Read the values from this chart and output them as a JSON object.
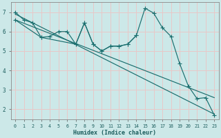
{
  "xlabel": "Humidex (Indice chaleur)",
  "bg_color": "#cce8e8",
  "grid_color": "#e8c8c8",
  "line_color": "#1a6e6e",
  "xlim": [
    -0.5,
    23.5
  ],
  "ylim": [
    1.5,
    7.5
  ],
  "xticks": [
    0,
    1,
    2,
    3,
    4,
    5,
    6,
    7,
    8,
    9,
    10,
    11,
    12,
    13,
    14,
    15,
    16,
    17,
    18,
    19,
    20,
    21,
    22,
    23
  ],
  "yticks": [
    2,
    3,
    4,
    5,
    6,
    7
  ],
  "line1_x": [
    0,
    1,
    2,
    3,
    4,
    5,
    6,
    7,
    8,
    9,
    10,
    11,
    12,
    13,
    14,
    15,
    16,
    17,
    18,
    19,
    20,
    21,
    22,
    23
  ],
  "line1_y": [
    7.0,
    6.6,
    6.45,
    5.7,
    5.75,
    6.0,
    6.0,
    5.35,
    6.45,
    5.35,
    5.0,
    5.25,
    5.25,
    5.35,
    5.8,
    7.2,
    6.95,
    6.2,
    5.75,
    4.35,
    3.2,
    2.55,
    2.6,
    1.7
  ],
  "line2_x": [
    0,
    3,
    7,
    8,
    9,
    10,
    11,
    12,
    13,
    14
  ],
  "line2_y": [
    6.6,
    5.7,
    5.35,
    6.45,
    5.35,
    5.0,
    5.25,
    5.25,
    5.35,
    5.8
  ],
  "line3_x": [
    0,
    23
  ],
  "line3_y": [
    6.9,
    1.75
  ],
  "line4_x": [
    0,
    23
  ],
  "line4_y": [
    6.6,
    2.6
  ]
}
